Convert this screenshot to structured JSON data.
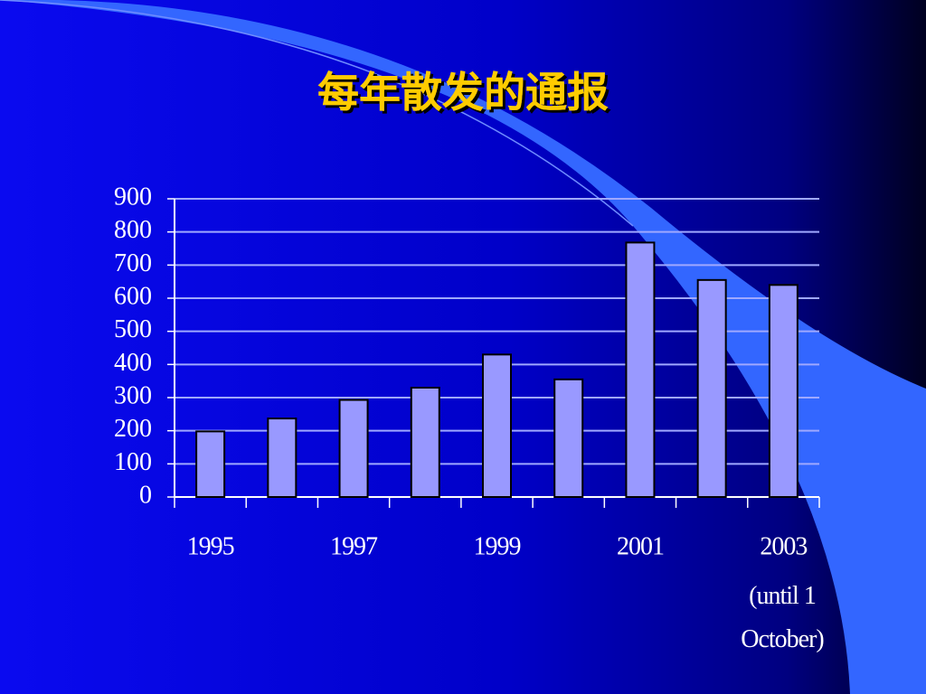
{
  "chart_data": {
    "type": "bar",
    "title": "每年散发的通报",
    "categories": [
      "1995",
      null,
      "1997",
      null,
      "1999",
      null,
      "2001",
      null,
      "2003"
    ],
    "note": "(until 1 October)",
    "values": [
      198,
      237,
      293,
      330,
      430,
      355,
      768,
      655,
      640
    ],
    "color": "#9999ff",
    "ylim": [
      0,
      900
    ],
    "yticks": [
      0,
      100,
      200,
      300,
      400,
      500,
      600,
      700,
      800,
      900
    ],
    "grid": true
  }
}
